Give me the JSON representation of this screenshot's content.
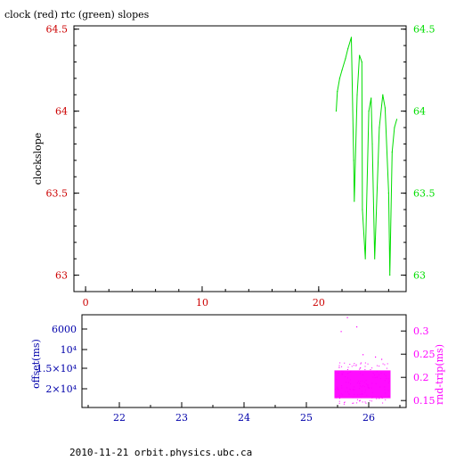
{
  "title": "clock (red) rtc (green) slopes",
  "footer": "2010-11-21 orbit.physics.ubc.ca",
  "colors": {
    "red": "#cc0000",
    "green": "#00dd00",
    "blue": "#0000aa",
    "magenta": "#ff00ff",
    "black": "#000000"
  },
  "chart_data": [
    {
      "type": "line",
      "title": "clock (red) rtc (green) slopes",
      "xlabel": "",
      "ylabel": "clockslope",
      "xlim": [
        -1,
        27.5
      ],
      "ylim": [
        62.9,
        64.52
      ],
      "x_ticks": [
        "0",
        "10",
        "20"
      ],
      "y_left_ticks": [
        "64.5",
        "64",
        "63.5",
        "63"
      ],
      "y_right_ticks": [
        "64.5",
        "64",
        "63.5",
        "63"
      ],
      "grid": false,
      "series": [
        {
          "x": [
            21.5,
            21.6,
            21.8,
            22.0,
            22.3,
            22.5,
            22.8,
            23.0,
            23.05,
            23.3,
            23.5,
            23.7,
            23.75,
            24.0,
            24.3,
            24.5,
            24.6,
            24.8,
            25.2,
            25.5,
            25.7,
            26.0,
            26.1,
            26.3,
            26.5,
            26.7
          ],
          "y": [
            64.0,
            64.12,
            64.2,
            64.25,
            64.32,
            64.38,
            64.45,
            63.7,
            63.45,
            64.1,
            64.34,
            64.3,
            63.4,
            63.1,
            64.0,
            64.08,
            63.8,
            63.1,
            63.9,
            64.1,
            64.02,
            63.5,
            63.0,
            63.75,
            63.9,
            63.95
          ]
        }
      ]
    },
    {
      "type": "scatter",
      "xlabel": "",
      "ylabel": "offset(ms)",
      "y2label": "rnd-trip(ms)",
      "xlim": [
        21.4,
        26.6
      ],
      "x_ticks": [
        "22",
        "23",
        "24",
        "25",
        "26"
      ],
      "y_left_ticks": [
        "6000",
        "10⁴",
        "1.5×10⁴",
        "2×10⁴"
      ],
      "y_right_ticks": [
        "0.3",
        "0.25",
        "0.2",
        "0.15"
      ],
      "y2lim": [
        0.135,
        0.335
      ],
      "series": [
        {
          "name": "rnd-trip",
          "x_range": [
            25.45,
            26.35
          ],
          "y_band": [
            0.155,
            0.215
          ],
          "outliers": [
            [
              25.55,
              0.3
            ],
            [
              25.65,
              0.33
            ],
            [
              25.8,
              0.31
            ],
            [
              25.9,
              0.25
            ],
            [
              26.1,
              0.245
            ],
            [
              26.2,
              0.24
            ]
          ]
        }
      ]
    }
  ]
}
